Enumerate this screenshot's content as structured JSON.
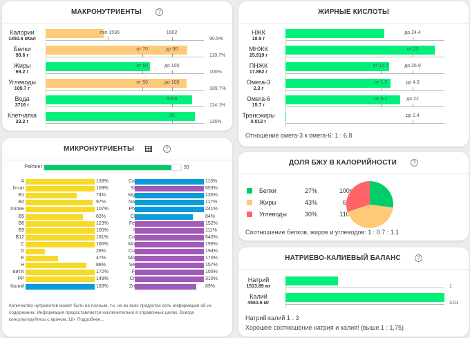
{
  "colors": {
    "green": "#00f07a",
    "orange": "#ffc97a",
    "yellow": "#f7d927",
    "blue": "#0a9bdb",
    "purple": "#a25ab8",
    "rating": "#00cc6a",
    "pie_green": "#00cc6a",
    "pie_yellow": "#ffc97a",
    "pie_red": "#ff6469"
  },
  "macro": {
    "title": "МАКРОНУТРИЕНТЫ",
    "help": "?",
    "rows": [
      {
        "name": "Калории",
        "value": "1450.6 кКал",
        "fill": 0.38,
        "color": "orange",
        "marks": [
          {
            "text": "min 1596",
            "pos": 0.41,
            "tick": 0.41,
            "inside": true
          },
          {
            "text": "1602",
            "pos": 0.83,
            "tick": 0.83
          }
        ],
        "pct": "90.5%"
      },
      {
        "name": "Белки",
        "value": "99.6 г",
        "fill": 0.93,
        "color": "orange",
        "marks": [
          {
            "text": "от 70",
            "pos": 0.635,
            "tick": 0.635
          },
          {
            "text": "до 90",
            "pos": 0.83,
            "tick": 0.83
          }
        ],
        "pct": "110.7%"
      },
      {
        "name": "Жиры",
        "value": "69.2 г",
        "fill": 0.685,
        "color": "green",
        "marks": [
          {
            "text": "от 60",
            "pos": 0.635,
            "tick": 0.635
          },
          {
            "text": "до 100",
            "pos": 0.83,
            "tick": 0.83
          }
        ],
        "pct": "100%"
      },
      {
        "name": "Углеводы",
        "value": "109.7 г",
        "fill": 0.925,
        "color": "orange",
        "marks": [
          {
            "text": "от 50",
            "pos": 0.635,
            "tick": 0.635
          },
          {
            "text": "до 100",
            "pos": 0.83,
            "tick": 0.83
          }
        ],
        "pct": "109.7%"
      },
      {
        "name": "Вода",
        "value": "3716 г",
        "fill": 0.965,
        "color": "green",
        "marks": [
          {
            "text": "3256",
            "pos": 0.83,
            "tick": 0.83
          }
        ],
        "pct": "114.1%"
      },
      {
        "name": "Клетчатка",
        "value": "23.2 г",
        "fill": 0.98,
        "color": "green",
        "marks": [
          {
            "text": "20",
            "pos": 0.83,
            "tick": 0.83
          }
        ],
        "pct": "116%"
      }
    ]
  },
  "fat": {
    "title": "ЖИРНЫЕ КИСЛОТЫ",
    "rows": [
      {
        "name": "НЖК",
        "value": "18.9 г",
        "fill": 0.62,
        "marks": [
          {
            "text": "до 24.4",
            "pos": 0.8
          }
        ]
      },
      {
        "name": "МНЖК",
        "value": "25.919 г",
        "fill": 0.94,
        "marks": [
          {
            "text": "от 22",
            "pos": 0.8
          }
        ]
      },
      {
        "name": "ПНЖК",
        "value": "17.862 г",
        "fill": 0.65,
        "marks": [
          {
            "text": "от 14.7",
            "pos": 0.6
          },
          {
            "text": "до 26.9",
            "pos": 0.8
          }
        ]
      },
      {
        "name": "Омега-3",
        "value": "2.3 г",
        "fill": 0.66,
        "marks": [
          {
            "text": "от 1.2",
            "pos": 0.6
          },
          {
            "text": "до 4.9",
            "pos": 0.8
          }
        ]
      },
      {
        "name": "Омега-6",
        "value": "15.7 г",
        "fill": 0.72,
        "marks": [
          {
            "text": "от 6.1",
            "pos": 0.6
          },
          {
            "text": "до 22",
            "pos": 0.8
          }
        ]
      },
      {
        "name": "Трансжиры",
        "value": "0.013 г",
        "fill": 0.003,
        "marks": [
          {
            "text": "до 2.4",
            "pos": 0.8
          }
        ]
      }
    ],
    "ratio_text": "Отношение омега-3 к омега-6: 1 : 6.8"
  },
  "micro": {
    "title": "МИКРОНУТРИЕНТЫ",
    "rating_label": "Рейтинг",
    "rating_value": "93",
    "rating": 93,
    "left": [
      {
        "name": "A",
        "pct": "138%",
        "fill": 1.0,
        "color": "yellow"
      },
      {
        "name": "b-car",
        "pct": "109%",
        "fill": 1.0,
        "color": "yellow"
      },
      {
        "name": "B1",
        "pct": "74%",
        "fill": 0.74,
        "color": "yellow"
      },
      {
        "name": "B2",
        "pct": "97%",
        "fill": 0.97,
        "color": "yellow"
      },
      {
        "name": "Холин",
        "pct": "107%",
        "fill": 1.0,
        "color": "yellow"
      },
      {
        "name": "B5",
        "pct": "83%",
        "fill": 0.83,
        "color": "yellow"
      },
      {
        "name": "B6",
        "pct": "123%",
        "fill": 1.0,
        "color": "yellow"
      },
      {
        "name": "B9",
        "pct": "100%",
        "fill": 1.0,
        "color": "yellow"
      },
      {
        "name": "B12",
        "pct": "181%",
        "fill": 1.0,
        "color": "yellow"
      },
      {
        "name": "C",
        "pct": "166%",
        "fill": 1.0,
        "color": "yellow"
      },
      {
        "name": "D",
        "pct": "28%",
        "fill": 0.28,
        "color": "yellow"
      },
      {
        "name": "E",
        "pct": "47%",
        "fill": 0.47,
        "color": "yellow"
      },
      {
        "name": "H",
        "pct": "88%",
        "fill": 0.88,
        "color": "yellow"
      },
      {
        "name": "вит.К",
        "pct": "172%",
        "fill": 1.0,
        "color": "yellow"
      },
      {
        "name": "PP",
        "pct": "148%",
        "fill": 1.0,
        "color": "yellow"
      },
      {
        "name": "Калий",
        "pct": "183%",
        "fill": 1.0,
        "color": "blue"
      }
    ],
    "right": [
      {
        "name": "Ca",
        "pct": "113%",
        "fill": 1.0,
        "color": "blue"
      },
      {
        "name": "Si",
        "pct": "653%",
        "fill": 1.0,
        "color": "purple"
      },
      {
        "name": "Mg",
        "pct": "135%",
        "fill": 1.0,
        "color": "blue"
      },
      {
        "name": "Na",
        "pct": "117%",
        "fill": 1.0,
        "color": "blue"
      },
      {
        "name": "Ph",
        "pct": "241%",
        "fill": 1.0,
        "color": "blue"
      },
      {
        "name": "Cl",
        "pct": "84%",
        "fill": 0.84,
        "color": "blue"
      },
      {
        "name": "Fe",
        "pct": "152%",
        "fill": 1.0,
        "color": "purple"
      },
      {
        "name": "I",
        "pct": "111%",
        "fill": 1.0,
        "color": "purple"
      },
      {
        "name": "Co",
        "pct": "640%",
        "fill": 1.0,
        "color": "purple"
      },
      {
        "name": "Mn",
        "pct": "199%",
        "fill": 1.0,
        "color": "purple"
      },
      {
        "name": "Cu",
        "pct": "194%",
        "fill": 1.0,
        "color": "purple"
      },
      {
        "name": "Mo",
        "pct": "170%",
        "fill": 1.0,
        "color": "purple"
      },
      {
        "name": "Se",
        "pct": "157%",
        "fill": 1.0,
        "color": "purple"
      },
      {
        "name": "F",
        "pct": "105%",
        "fill": 1.0,
        "color": "purple"
      },
      {
        "name": "Cr",
        "pct": "310%",
        "fill": 1.0,
        "color": "purple"
      },
      {
        "name": "Zn",
        "pct": "89%",
        "fill": 0.89,
        "color": "purple"
      }
    ],
    "note": "Количество нутриентов может быть не полным, т.к. не во всех продуктах есть информация об их содержании. Информация предоставляется исключительно в справочных целях. Всегда консультируйтесь с врачом. 18+ Подробнее..."
  },
  "bju": {
    "title": "ДОЛЯ БЖУ В КАЛОРИЙНОСТИ",
    "items": [
      {
        "name": "Белки",
        "pct": "27%",
        "grams": "100г",
        "share": 27,
        "color": "pie_green"
      },
      {
        "name": "Жиры",
        "pct": "43%",
        "grams": "69г",
        "share": 43,
        "color": "pie_yellow"
      },
      {
        "name": "Углеводы",
        "pct": "30%",
        "grams": "110г",
        "share": 30,
        "color": "pie_red"
      }
    ],
    "ratio_text": "Соотношение белков, жиров и углеводов: 1 : 0.7 : 1.1"
  },
  "nak": {
    "title": "НАТРИЕВО-КАЛИЕВЫЙ БАЛАНС",
    "rows": [
      {
        "name": "Натрий",
        "value": "1513.89 мг",
        "fill": 0.33,
        "ratio": "1"
      },
      {
        "name": "Калий",
        "value": "4563.6 мг",
        "fill": 1.0,
        "ratio": "3.01"
      }
    ],
    "ratio_text": "Натрий:калий 1 : 3",
    "comment": "Хорошее соотношение натрия и калия! (выше 1 : 1,75)"
  }
}
